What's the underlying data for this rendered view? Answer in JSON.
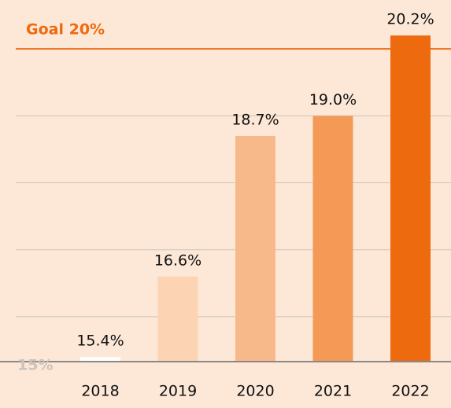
{
  "chart_data": {
    "type": "bar",
    "categories": [
      "2018",
      "2019",
      "2020",
      "2021",
      "2022"
    ],
    "values": [
      15.4,
      16.6,
      18.7,
      19.0,
      20.2
    ],
    "value_labels": [
      "15.4%",
      "16.6%",
      "18.7%",
      "19.0%",
      "20.2%"
    ],
    "colors": [
      "#ffffff",
      "#fcd4b4",
      "#f8b98a",
      "#f49a56",
      "#ee6a0f"
    ],
    "ylim": [
      15.33,
      20.73
    ],
    "grid_lines": [
      16,
      17,
      18,
      19
    ],
    "baseline_label": "15%",
    "goal": {
      "label": "Goal 20%",
      "value": 20,
      "color": "#ee6a0f"
    }
  }
}
